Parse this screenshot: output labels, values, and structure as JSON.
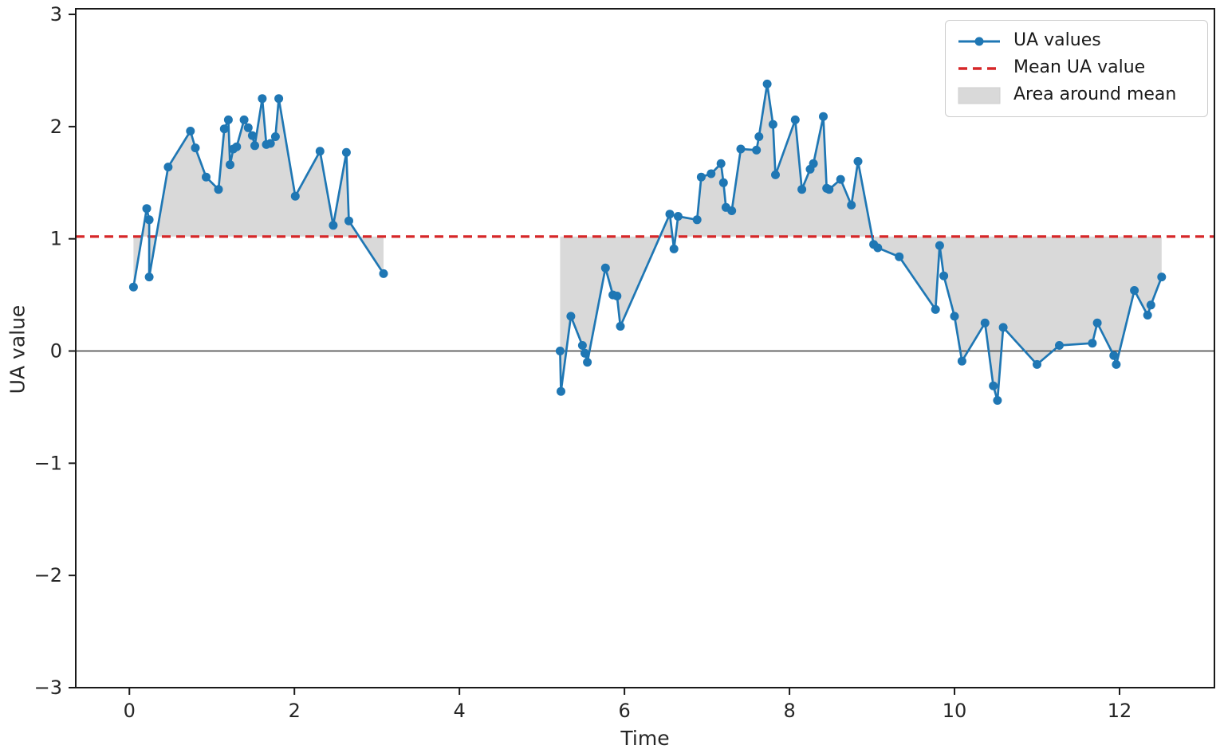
{
  "chart_data": {
    "type": "line",
    "title": "",
    "xlabel": "Time",
    "ylabel": "UA value",
    "xlim": [
      -0.65,
      13.15
    ],
    "ylim": [
      -3.0,
      3.05
    ],
    "x_ticks": [
      0,
      2,
      4,
      6,
      8,
      10,
      12
    ],
    "y_ticks": [
      3,
      2,
      1,
      0,
      -1,
      -2,
      -3
    ],
    "grid": false,
    "legend_position": "upper right",
    "mean_value": 1.02,
    "zero_line_value": 0,
    "colors": {
      "line": "#1f77b4",
      "mean": "#d62728",
      "area": "#d9d9d9",
      "zero_line": "#3d3d3d",
      "axes": "#1a1a1a",
      "tick_text": "#262626"
    },
    "legend": [
      {
        "label": "UA values",
        "handle": "line-with-marker"
      },
      {
        "label": "Mean UA value",
        "handle": "dashed-line"
      },
      {
        "label": "Area around mean",
        "handle": "patch"
      }
    ],
    "series": [
      {
        "name": "UA values (segment 1)",
        "points": [
          [
            0.05,
            0.57
          ],
          [
            0.21,
            1.27
          ],
          [
            0.24,
            1.17
          ],
          [
            0.24,
            0.66
          ],
          [
            0.47,
            1.64
          ],
          [
            0.74,
            1.96
          ],
          [
            0.8,
            1.81
          ],
          [
            0.93,
            1.55
          ],
          [
            1.08,
            1.44
          ],
          [
            1.15,
            1.98
          ],
          [
            1.2,
            2.06
          ],
          [
            1.22,
            1.66
          ],
          [
            1.26,
            1.8
          ],
          [
            1.3,
            1.82
          ],
          [
            1.39,
            2.06
          ],
          [
            1.44,
            1.99
          ],
          [
            1.49,
            1.92
          ],
          [
            1.52,
            1.83
          ],
          [
            1.61,
            2.25
          ],
          [
            1.66,
            1.84
          ],
          [
            1.71,
            1.85
          ],
          [
            1.77,
            1.91
          ],
          [
            1.81,
            2.25
          ],
          [
            2.01,
            1.38
          ],
          [
            2.31,
            1.78
          ],
          [
            2.47,
            1.12
          ],
          [
            2.63,
            1.77
          ],
          [
            2.66,
            1.16
          ],
          [
            3.08,
            0.69
          ]
        ]
      },
      {
        "name": "UA values (segment 2)",
        "points": [
          [
            5.22,
            0.0
          ],
          [
            5.23,
            -0.36
          ],
          [
            5.35,
            0.31
          ],
          [
            5.49,
            0.05
          ],
          [
            5.52,
            -0.02
          ],
          [
            5.55,
            -0.1
          ],
          [
            5.77,
            0.74
          ],
          [
            5.86,
            0.5
          ],
          [
            5.91,
            0.49
          ],
          [
            5.95,
            0.22
          ],
          [
            6.55,
            1.22
          ],
          [
            6.6,
            0.91
          ],
          [
            6.65,
            1.2
          ],
          [
            6.88,
            1.17
          ],
          [
            6.93,
            1.55
          ],
          [
            7.05,
            1.58
          ],
          [
            7.17,
            1.67
          ],
          [
            7.2,
            1.5
          ],
          [
            7.23,
            1.28
          ],
          [
            7.3,
            1.25
          ],
          [
            7.41,
            1.8
          ],
          [
            7.6,
            1.79
          ],
          [
            7.63,
            1.91
          ],
          [
            7.73,
            2.38
          ],
          [
            7.8,
            2.02
          ],
          [
            7.83,
            1.57
          ],
          [
            8.07,
            2.06
          ],
          [
            8.15,
            1.44
          ],
          [
            8.25,
            1.62
          ],
          [
            8.29,
            1.67
          ],
          [
            8.41,
            2.09
          ],
          [
            8.45,
            1.45
          ],
          [
            8.48,
            1.44
          ],
          [
            8.62,
            1.53
          ],
          [
            8.75,
            1.3
          ],
          [
            8.83,
            1.69
          ],
          [
            9.02,
            0.95
          ],
          [
            9.07,
            0.92
          ],
          [
            9.33,
            0.84
          ],
          [
            9.77,
            0.37
          ],
          [
            9.82,
            0.94
          ],
          [
            9.87,
            0.67
          ],
          [
            10.0,
            0.31
          ],
          [
            10.09,
            -0.09
          ],
          [
            10.37,
            0.25
          ],
          [
            10.47,
            -0.31
          ],
          [
            10.52,
            -0.44
          ],
          [
            10.59,
            0.21
          ],
          [
            11.0,
            -0.12
          ],
          [
            11.27,
            0.05
          ],
          [
            11.67,
            0.07
          ],
          [
            11.73,
            0.25
          ],
          [
            11.93,
            -0.04
          ],
          [
            11.96,
            -0.12
          ],
          [
            12.18,
            0.54
          ],
          [
            12.34,
            0.32
          ],
          [
            12.38,
            0.41
          ],
          [
            12.51,
            0.66
          ]
        ]
      }
    ]
  }
}
